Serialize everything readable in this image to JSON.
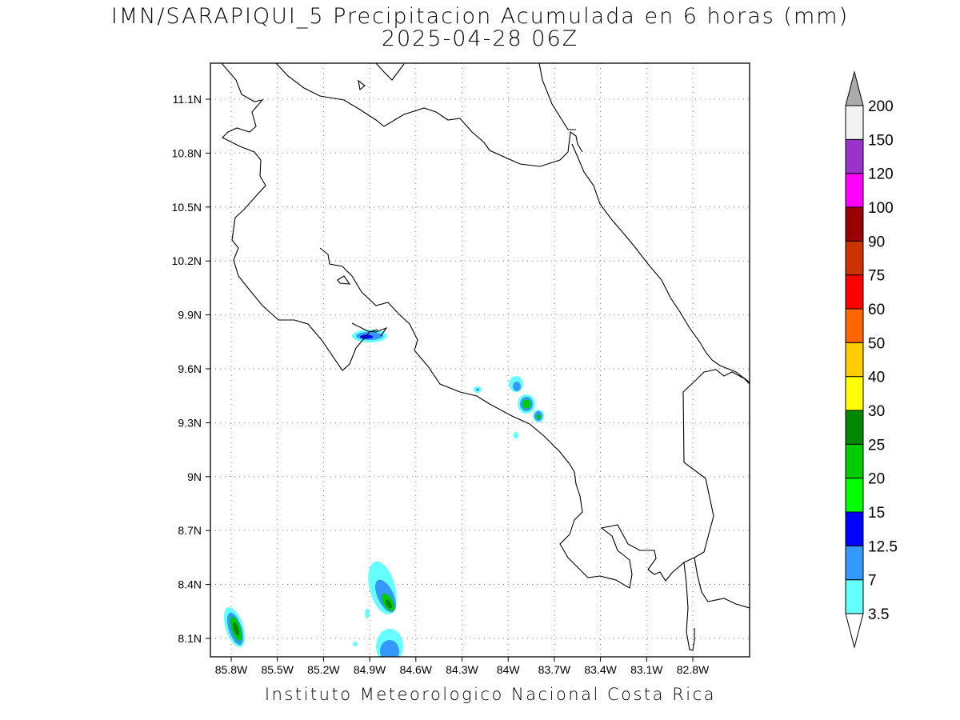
{
  "title": "IMN/SARAPIQUI_5 Precipitacion Acumulada en 6 horas (mm)",
  "subtitle": "2025-04-28 06Z",
  "footer": "Instituto Meteorologico Nacional Costa Rica",
  "map": {
    "lon_range": [
      -85.99,
      -82.99
    ],
    "lat_range": [
      7.99,
      11.29
    ],
    "lat_ticks": [
      "11.1N",
      "10.8N",
      "10.5N",
      "10.2N",
      "9.9N",
      "9.6N",
      "9.3N",
      "9N",
      "8.7N",
      "8.4N",
      "8.1N"
    ],
    "lon_ticks": [
      "85.8W",
      "85.5W",
      "85.2W",
      "84.9W",
      "84.6W",
      "84.3W",
      "84W",
      "83.7W",
      "83.4W",
      "83.1W",
      "82.8W"
    ],
    "grid": true
  },
  "colorbar": {
    "levels": [
      {
        "label": "3.5",
        "color": "#66ffff"
      },
      {
        "label": "7",
        "color": "#3399ff"
      },
      {
        "label": "12.5",
        "color": "#0000ff"
      },
      {
        "label": "15",
        "color": "#00ff00"
      },
      {
        "label": "20",
        "color": "#00cc00"
      },
      {
        "label": "25",
        "color": "#008800"
      },
      {
        "label": "30",
        "color": "#ffff00"
      },
      {
        "label": "40",
        "color": "#ffcc00"
      },
      {
        "label": "50",
        "color": "#ff6600"
      },
      {
        "label": "60",
        "color": "#ff0000"
      },
      {
        "label": "75",
        "color": "#cc3300"
      },
      {
        "label": "90",
        "color": "#990000"
      },
      {
        "label": "100",
        "color": "#ff00ff"
      },
      {
        "label": "120",
        "color": "#9933cc"
      },
      {
        "label": "150",
        "color": "#f2f2f2"
      },
      {
        "label": "200",
        "color": "#aaaaaa"
      }
    ]
  },
  "precip_cells": [
    {
      "lon": -84.87,
      "lat": 9.78,
      "value": 12.5
    },
    {
      "lon": -84.05,
      "lat": 9.42,
      "value": 20
    },
    {
      "lon": -83.96,
      "lat": 9.33,
      "value": 15
    },
    {
      "lon": -83.93,
      "lat": 9.33,
      "value": 7
    },
    {
      "lon": -84.06,
      "lat": 9.53,
      "value": 7
    },
    {
      "lon": -84.32,
      "lat": 9.48,
      "value": 3.5
    },
    {
      "lon": -84.07,
      "lat": 9.24,
      "value": 3.5
    },
    {
      "lon": -85.82,
      "lat": 8.15,
      "value": 25
    },
    {
      "lon": -84.82,
      "lat": 8.34,
      "value": 20
    },
    {
      "lon": -84.83,
      "lat": 8.04,
      "value": 7
    }
  ]
}
